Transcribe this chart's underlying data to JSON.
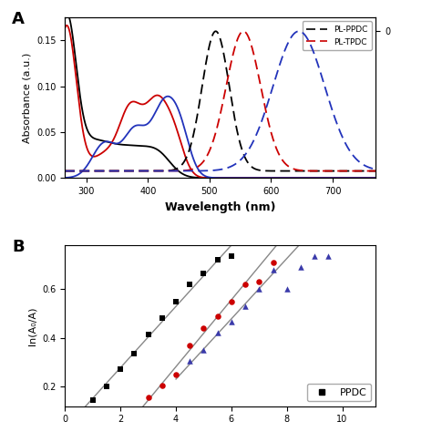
{
  "panel_A": {
    "ylabel_left": "Absorbance (a.u.)",
    "xlabel": "Wavelength (nm)",
    "xlim": [
      265,
      770
    ],
    "ylim_left": [
      0.0,
      0.175
    ],
    "ylim_right": [
      -0.05,
      1.1
    ],
    "yticks_left": [
      0.0,
      0.05,
      0.1,
      0.15
    ],
    "legend_entries": [
      {
        "label": "PL-PPDC",
        "color": "#000000"
      },
      {
        "label": "PL-TPDC",
        "color": "#cc0000"
      }
    ]
  },
  "panel_B": {
    "ylabel": "ln(A₀/A)",
    "ylim": [
      0.12,
      0.78
    ],
    "yticks": [
      0.2,
      0.4,
      0.6
    ],
    "PPDC": {
      "color": "#000000",
      "marker": "s",
      "x": [
        1.0,
        1.5,
        2.0,
        2.5,
        3.0,
        3.5,
        4.0,
        4.5,
        5.0,
        5.5,
        6.0
      ],
      "y": [
        0.145,
        0.2,
        0.27,
        0.335,
        0.415,
        0.48,
        0.55,
        0.62,
        0.665,
        0.72,
        0.735
      ]
    },
    "TPDC": {
      "color": "#cc0000",
      "marker": "o",
      "x": [
        3.0,
        3.5,
        4.0,
        4.5,
        5.0,
        5.5,
        6.0,
        6.5,
        7.0,
        7.5
      ],
      "y": [
        0.155,
        0.205,
        0.25,
        0.37,
        0.44,
        0.49,
        0.55,
        0.62,
        0.63,
        0.71
      ]
    },
    "blue": {
      "color": "#3a3aaa",
      "marker": "^",
      "x": [
        4.5,
        5.0,
        5.5,
        6.0,
        6.5,
        7.0,
        7.5,
        8.0,
        8.5,
        9.0,
        9.5
      ],
      "y": [
        0.305,
        0.35,
        0.42,
        0.465,
        0.53,
        0.6,
        0.68,
        0.6,
        0.69,
        0.735,
        0.735
      ]
    },
    "legend_label": "PPDC"
  }
}
